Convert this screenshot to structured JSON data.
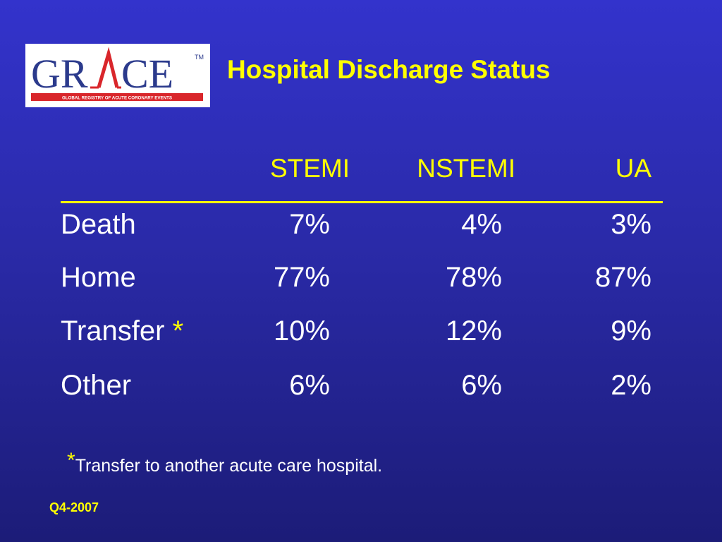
{
  "logo": {
    "text": "GRACE",
    "tagline": "GLOBAL REGISTRY OF ACUTE CORONARY EVENTS",
    "trademark": "TM"
  },
  "title": "Hospital Discharge Status",
  "table": {
    "columns": [
      "STEMI",
      "NSTEMI",
      "UA"
    ],
    "rows": [
      {
        "label": "Death",
        "values": [
          "7%",
          "4%",
          "3%"
        ]
      },
      {
        "label": "Home",
        "values": [
          "77%",
          "78%",
          "87%"
        ]
      },
      {
        "label": "Transfer",
        "marker": "*",
        "values": [
          "10%",
          "12%",
          "9%"
        ]
      },
      {
        "label": "Other",
        "values": [
          "6%",
          "6%",
          "2%"
        ]
      }
    ]
  },
  "footnote": {
    "marker": "*",
    "text": "Transfer to another acute care hospital."
  },
  "date_label": "Q4-2007",
  "colors": {
    "background_top": "#3333cc",
    "background_bottom": "#1c1c78",
    "accent": "#ffff00",
    "text": "#ffffff",
    "logo_blue": "#2b3a8c",
    "logo_red": "#d9262b"
  }
}
